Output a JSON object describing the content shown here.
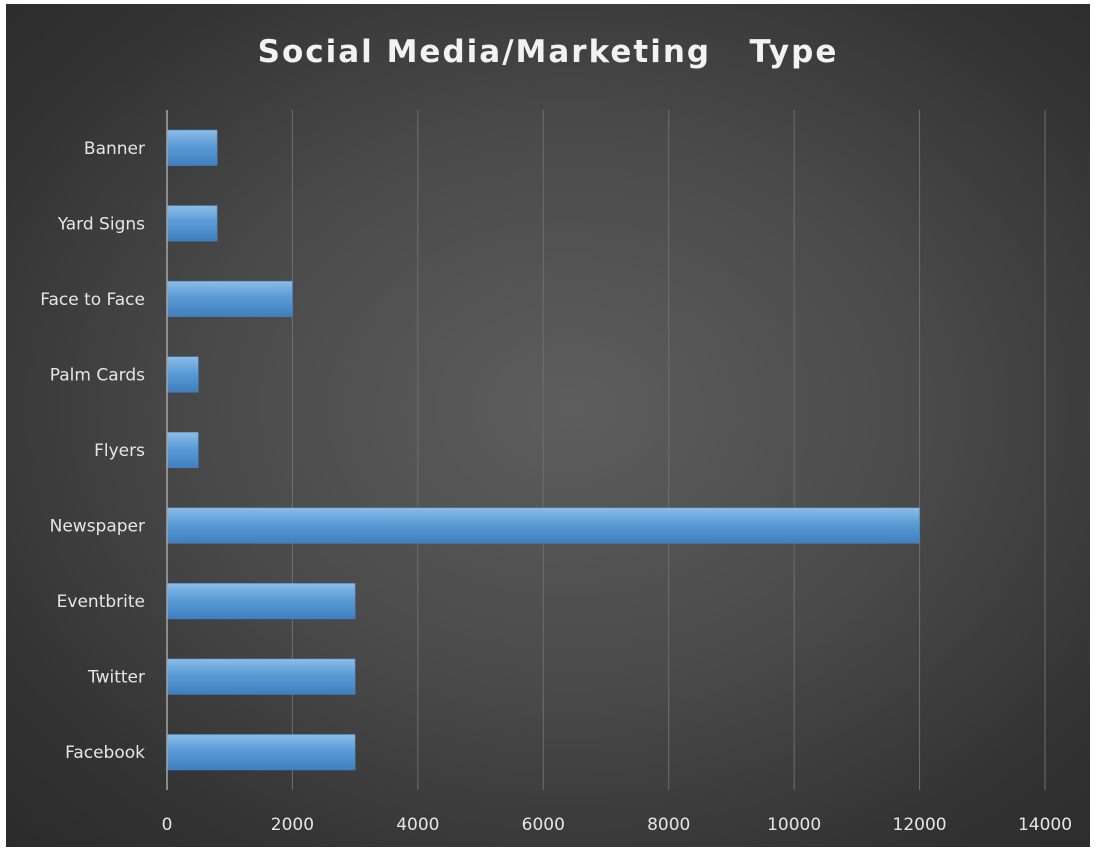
{
  "chart_data": {
    "type": "bar",
    "orientation": "horizontal",
    "title": "Social Media/Marketing   Type",
    "categories": [
      "Banner",
      "Yard Signs",
      "Face to Face",
      "Palm Cards",
      "Flyers",
      "Newspaper",
      "Eventbrite",
      "Twitter",
      "Facebook"
    ],
    "values": [
      800,
      800,
      2000,
      500,
      500,
      12000,
      3000,
      3000,
      3000
    ],
    "xticks": [
      0,
      2000,
      4000,
      6000,
      8000,
      10000,
      12000,
      14000
    ],
    "xlim": [
      0,
      14000
    ],
    "xlabel": "",
    "ylabel": "",
    "grid": "vertical",
    "legend": "none",
    "bar_color": "#5b9bd5",
    "background": "dark-gradient"
  }
}
